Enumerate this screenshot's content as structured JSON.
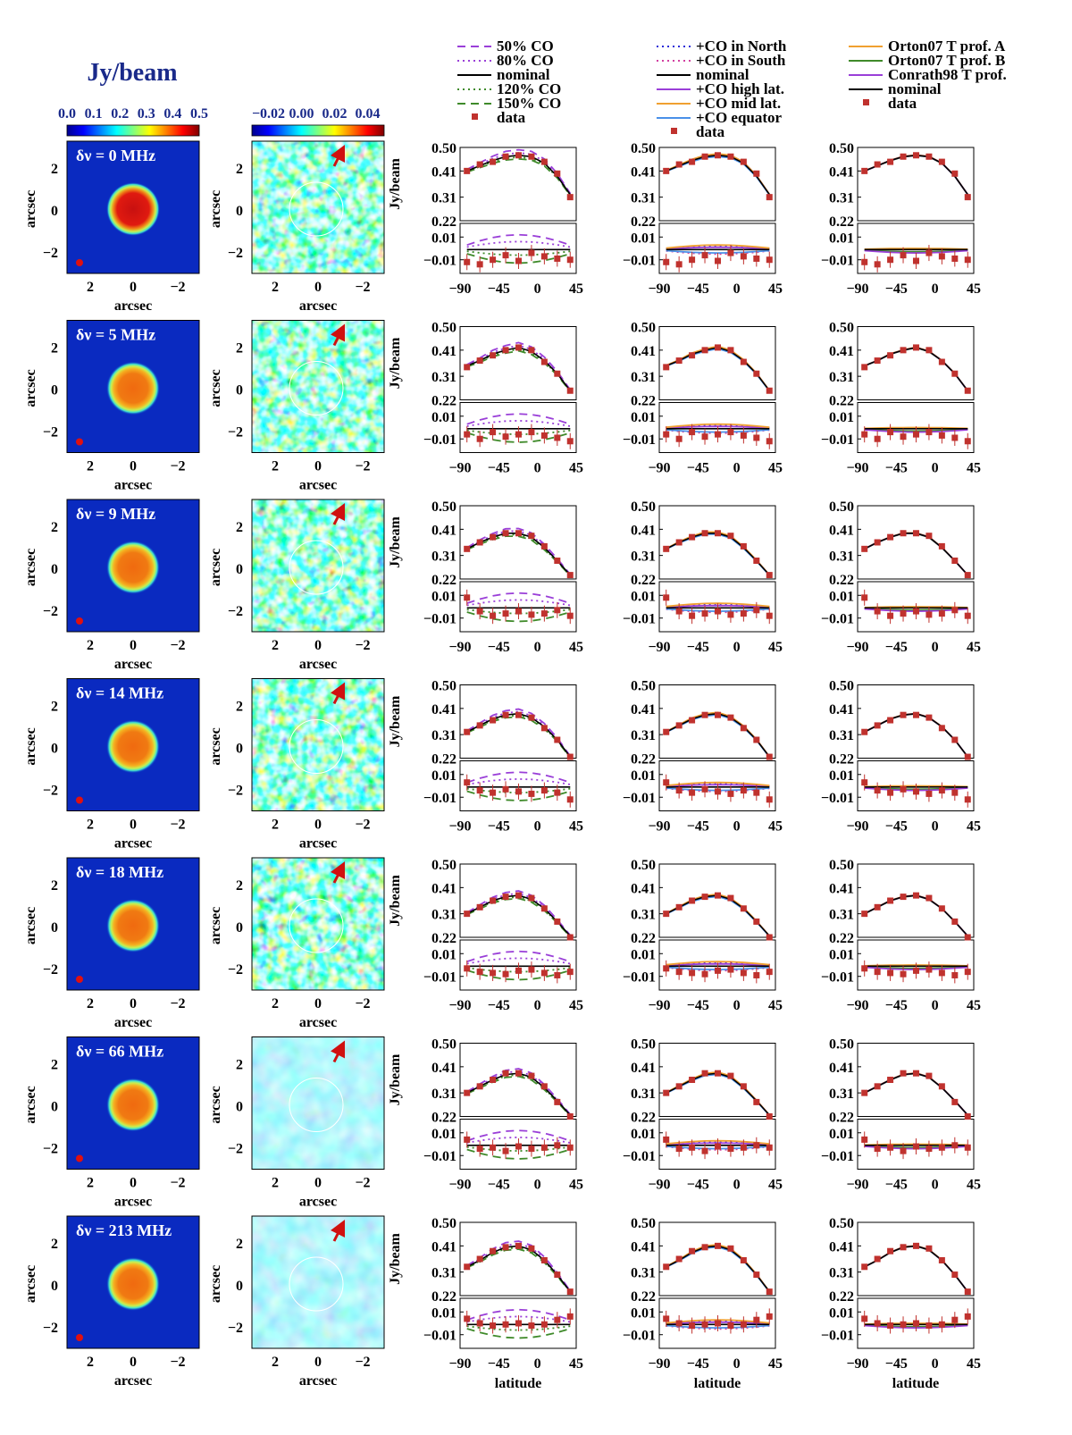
{
  "cbar1": {
    "title": "Jy/beam",
    "ticks": [
      "0.0",
      "0.1",
      "0.2",
      "0.3",
      "0.4",
      "0.5"
    ],
    "tick_values": [
      0.0,
      0.1,
      0.2,
      0.3,
      0.4,
      0.5
    ]
  },
  "cbar2": {
    "ticks": [
      "−0.02",
      "0.00",
      "0.02",
      "0.04"
    ],
    "tick_values": [
      -0.02,
      0.0,
      0.02,
      0.04
    ]
  },
  "map_axes": {
    "ylabel": "arcsec",
    "xlabel": "arcsec",
    "yticks": [
      "2",
      "0",
      "−2"
    ],
    "xticks": [
      "2",
      "0",
      "−2"
    ],
    "range": [
      -3.2,
      3.2
    ]
  },
  "plot_axes": {
    "ylabel": "Jy/beam",
    "top_ticks": [
      "0.50",
      "0.41",
      "0.31",
      "0.22"
    ],
    "top_tick_values": [
      0.5,
      0.41,
      0.31,
      0.22
    ],
    "top_ylim": [
      0.22,
      0.5
    ],
    "bot_ticks": [
      "0.01",
      "−0.01"
    ],
    "bot_tick_values": [
      0.01,
      -0.01
    ],
    "bot_ylim": [
      -0.022,
      0.022
    ],
    "xticks": [
      "−90",
      "−45",
      "0",
      "45"
    ],
    "xtick_values": [
      -90,
      -45,
      0,
      45
    ],
    "xlim": [
      -90,
      45
    ],
    "xlabel": "latitude"
  },
  "legends": [
    [
      {
        "label": "50% CO",
        "color": "#9a3fd8",
        "style": "dash"
      },
      {
        "label": "80% CO",
        "color": "#9a3fd8",
        "style": "dot"
      },
      {
        "label": "nominal",
        "color": "#000000",
        "style": "solid"
      },
      {
        "label": "120% CO",
        "color": "#3f8a2a",
        "style": "dot"
      },
      {
        "label": "150% CO",
        "color": "#3f8a2a",
        "style": "dash"
      },
      {
        "label": "data",
        "color": "#c0322e",
        "style": "square"
      }
    ],
    [
      {
        "label": "+CO in North",
        "color": "#2a2ad8",
        "style": "dot"
      },
      {
        "label": "+CO in South",
        "color": "#d23fa0",
        "style": "dot"
      },
      {
        "label": "nominal",
        "color": "#000000",
        "style": "solid"
      },
      {
        "label": "+CO high lat.",
        "color": "#9a3fd8",
        "style": "solid"
      },
      {
        "label": "+CO mid lat.",
        "color": "#f0a030",
        "style": "solid"
      },
      {
        "label": "+CO equator",
        "color": "#4a90e8",
        "style": "solid"
      },
      {
        "label": "data",
        "color": "#c0322e",
        "style": "square"
      }
    ],
    [
      {
        "label": "Orton07 T prof. A",
        "color": "#f0a030",
        "style": "solid"
      },
      {
        "label": "Orton07 T prof. B",
        "color": "#3f8a2a",
        "style": "solid"
      },
      {
        "label": "Conrath98 T prof.",
        "color": "#9a3fd8",
        "style": "solid"
      },
      {
        "label": "nominal",
        "color": "#000000",
        "style": "solid"
      },
      {
        "label": "data",
        "color": "#c0322e",
        "style": "square"
      }
    ]
  ],
  "rows": [
    {
      "label": "δν =   0 MHz"
    },
    {
      "label": "δν =   5 MHz"
    },
    {
      "label": "δν =   9 MHz"
    },
    {
      "label": "δν = 14 MHz"
    },
    {
      "label": "δν = 18 MHz"
    },
    {
      "label": "δν =   66 MHz"
    },
    {
      "label": "δν = 213 MHz"
    }
  ],
  "chart_data": {
    "type": "line",
    "x": [
      -82,
      -67,
      -52,
      -37,
      -22,
      -7,
      8,
      23,
      38
    ],
    "xlabel": "latitude",
    "ylabel": "Jy/beam",
    "xlim": [
      -90,
      45
    ],
    "ylim_top": [
      0.22,
      0.5
    ],
    "ylim_bottom": [
      -0.022,
      0.022
    ],
    "panels": [
      {
        "row": 1,
        "nominal": [
          0.41,
          0.43,
          0.45,
          0.465,
          0.47,
          0.465,
          0.44,
          0.39,
          0.32
        ],
        "data": [
          0.41,
          0.435,
          0.445,
          0.465,
          0.47,
          0.465,
          0.445,
          0.4,
          0.31
        ],
        "residual": [
          -0.012,
          -0.014,
          -0.01,
          -0.006,
          -0.011,
          -0.004,
          -0.007,
          -0.009,
          -0.01
        ]
      },
      {
        "row": 2,
        "nominal": [
          0.35,
          0.37,
          0.395,
          0.41,
          0.42,
          0.405,
          0.37,
          0.32,
          0.255
        ],
        "data": [
          0.345,
          0.37,
          0.39,
          0.41,
          0.42,
          0.41,
          0.365,
          0.32,
          0.255
        ],
        "residual": [
          -0.006,
          -0.01,
          -0.004,
          -0.008,
          -0.006,
          -0.004,
          -0.007,
          -0.009,
          -0.012
        ]
      },
      {
        "row": 3,
        "nominal": [
          0.335,
          0.36,
          0.38,
          0.395,
          0.395,
          0.38,
          0.34,
          0.29,
          0.235
        ],
        "data": [
          0.335,
          0.36,
          0.38,
          0.395,
          0.395,
          0.385,
          0.345,
          0.29,
          0.235
        ],
        "residual": [
          0.008,
          -0.004,
          -0.008,
          -0.006,
          -0.004,
          -0.007,
          -0.006,
          -0.003,
          -0.008
        ]
      },
      {
        "row": 4,
        "nominal": [
          0.32,
          0.345,
          0.37,
          0.385,
          0.39,
          0.375,
          0.34,
          0.29,
          0.225
        ],
        "data": [
          0.32,
          0.345,
          0.365,
          0.385,
          0.385,
          0.375,
          0.335,
          0.29,
          0.225
        ],
        "residual": [
          0.003,
          -0.004,
          -0.006,
          -0.003,
          -0.005,
          -0.007,
          -0.004,
          -0.006,
          -0.012
        ]
      },
      {
        "row": 5,
        "nominal": [
          0.31,
          0.335,
          0.36,
          0.375,
          0.38,
          0.365,
          0.33,
          0.28,
          0.225
        ],
        "data": [
          0.31,
          0.335,
          0.36,
          0.375,
          0.38,
          0.37,
          0.33,
          0.28,
          0.22
        ],
        "residual": [
          -0.003,
          -0.006,
          -0.007,
          -0.008,
          -0.005,
          -0.004,
          -0.007,
          -0.009,
          -0.006
        ]
      },
      {
        "row": 6,
        "nominal": [
          0.31,
          0.335,
          0.36,
          0.38,
          0.385,
          0.37,
          0.33,
          0.28,
          0.225
        ],
        "data": [
          0.31,
          0.335,
          0.36,
          0.385,
          0.385,
          0.375,
          0.335,
          0.275,
          0.22
        ],
        "residual": [
          0.004,
          -0.004,
          -0.003,
          -0.006,
          -0.002,
          -0.004,
          -0.003,
          -0.001,
          -0.003
        ]
      },
      {
        "row": 7,
        "nominal": [
          0.33,
          0.355,
          0.385,
          0.405,
          0.41,
          0.395,
          0.355,
          0.3,
          0.235
        ],
        "data": [
          0.33,
          0.36,
          0.39,
          0.405,
          0.41,
          0.4,
          0.355,
          0.3,
          0.235
        ],
        "residual": [
          0.004,
          0.0,
          -0.002,
          -0.001,
          0.0,
          -0.002,
          -0.001,
          0.003,
          0.006
        ]
      }
    ]
  }
}
